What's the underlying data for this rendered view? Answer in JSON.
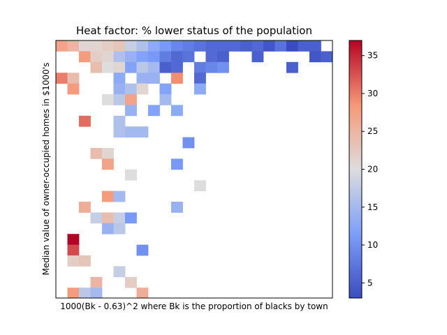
{
  "chart_data": {
    "type": "heatmap",
    "title": "Heat factor: % lower status of the population",
    "xlabel": "1000(Bk - 0.63)^2 where Bk is the proportion of blacks by town",
    "ylabel": "Median value of owner-occupied homes in $1000's",
    "n_cols": 24,
    "n_rows": 24,
    "colormap": "coolwarm",
    "color_range": [
      3,
      37
    ],
    "colorbar_ticks": [
      5,
      10,
      15,
      20,
      25,
      30,
      35
    ],
    "cells": [
      [
        0,
        0,
        27
      ],
      [
        0,
        1,
        25
      ],
      [
        0,
        2,
        21
      ],
      [
        0,
        3,
        21
      ],
      [
        0,
        4,
        22
      ],
      [
        0,
        5,
        23
      ],
      [
        0,
        6,
        18
      ],
      [
        0,
        7,
        16
      ],
      [
        0,
        8,
        13
      ],
      [
        0,
        9,
        11
      ],
      [
        0,
        10,
        9
      ],
      [
        0,
        11,
        8
      ],
      [
        0,
        12,
        7
      ],
      [
        0,
        13,
        6
      ],
      [
        0,
        14,
        6
      ],
      [
        0,
        15,
        6
      ],
      [
        0,
        16,
        5
      ],
      [
        0,
        17,
        6
      ],
      [
        0,
        18,
        4
      ],
      [
        0,
        19,
        7
      ],
      [
        0,
        20,
        3
      ],
      [
        0,
        21,
        5
      ],
      [
        0,
        22,
        5
      ],
      [
        0,
        24,
        3
      ],
      [
        1,
        2,
        28
      ],
      [
        1,
        3,
        22
      ],
      [
        1,
        4,
        21
      ],
      [
        1,
        5,
        16
      ],
      [
        1,
        6,
        14
      ],
      [
        1,
        7,
        12
      ],
      [
        1,
        8,
        11
      ],
      [
        1,
        9,
        8
      ],
      [
        1,
        10,
        6
      ],
      [
        1,
        11,
        7
      ],
      [
        1,
        13,
        6
      ],
      [
        1,
        14,
        5
      ],
      [
        1,
        17,
        5
      ],
      [
        1,
        22,
        4
      ],
      [
        1,
        23,
        5
      ],
      [
        1,
        24,
        4
      ],
      [
        2,
        3,
        24
      ],
      [
        2,
        4,
        20
      ],
      [
        2,
        5,
        21
      ],
      [
        2,
        6,
        12
      ],
      [
        2,
        7,
        17
      ],
      [
        2,
        8,
        15
      ],
      [
        2,
        9,
        5
      ],
      [
        2,
        10,
        6
      ],
      [
        2,
        12,
        8
      ],
      [
        2,
        13,
        9
      ],
      [
        2,
        14,
        10
      ],
      [
        2,
        20,
        5
      ],
      [
        3,
        0,
        30
      ],
      [
        3,
        1,
        24
      ],
      [
        3,
        5,
        13
      ],
      [
        3,
        7,
        14
      ],
      [
        3,
        8,
        14
      ],
      [
        3,
        12,
        6
      ],
      [
        3,
        10,
        29
      ],
      [
        3,
        24,
        12
      ],
      [
        4,
        1,
        28
      ],
      [
        4,
        5,
        14
      ],
      [
        4,
        6,
        16
      ],
      [
        4,
        7,
        21
      ],
      [
        4,
        9,
        12
      ],
      [
        4,
        12,
        13
      ],
      [
        5,
        4,
        20
      ],
      [
        5,
        5,
        17
      ],
      [
        5,
        6,
        27
      ],
      [
        5,
        9,
        15
      ],
      [
        6,
        6,
        14
      ],
      [
        6,
        8,
        12
      ],
      [
        6,
        10,
        13
      ],
      [
        7,
        2,
        31
      ],
      [
        7,
        5,
        16
      ],
      [
        8,
        5,
        16
      ],
      [
        8,
        6,
        15
      ],
      [
        8,
        7,
        15
      ],
      [
        9,
        11,
        10
      ],
      [
        10,
        3,
        24
      ],
      [
        10,
        4,
        21
      ],
      [
        11,
        4,
        27
      ],
      [
        11,
        10,
        11
      ],
      [
        12,
        6,
        20
      ],
      [
        13,
        12,
        20
      ],
      [
        14,
        4,
        28
      ],
      [
        14,
        5,
        15
      ],
      [
        15,
        2,
        26
      ],
      [
        15,
        10,
        14
      ],
      [
        16,
        3,
        18
      ],
      [
        16,
        4,
        24
      ],
      [
        16,
        5,
        18
      ],
      [
        16,
        6,
        11
      ],
      [
        17,
        4,
        14
      ],
      [
        17,
        5,
        17
      ],
      [
        18,
        1,
        37
      ],
      [
        19,
        1,
        33
      ],
      [
        19,
        7,
        10
      ],
      [
        20,
        1,
        22
      ],
      [
        20,
        2,
        23
      ],
      [
        21,
        5,
        18
      ],
      [
        22,
        3,
        25
      ],
      [
        22,
        6,
        22
      ],
      [
        23,
        1,
        28
      ],
      [
        23,
        2,
        17
      ],
      [
        23,
        3,
        15
      ],
      [
        23,
        7,
        26
      ],
      [
        24,
        1,
        24
      ],
      [
        24,
        2,
        27
      ],
      [
        24,
        3,
        18
      ],
      [
        24,
        4,
        20
      ],
      [
        24,
        5,
        13
      ]
    ]
  }
}
